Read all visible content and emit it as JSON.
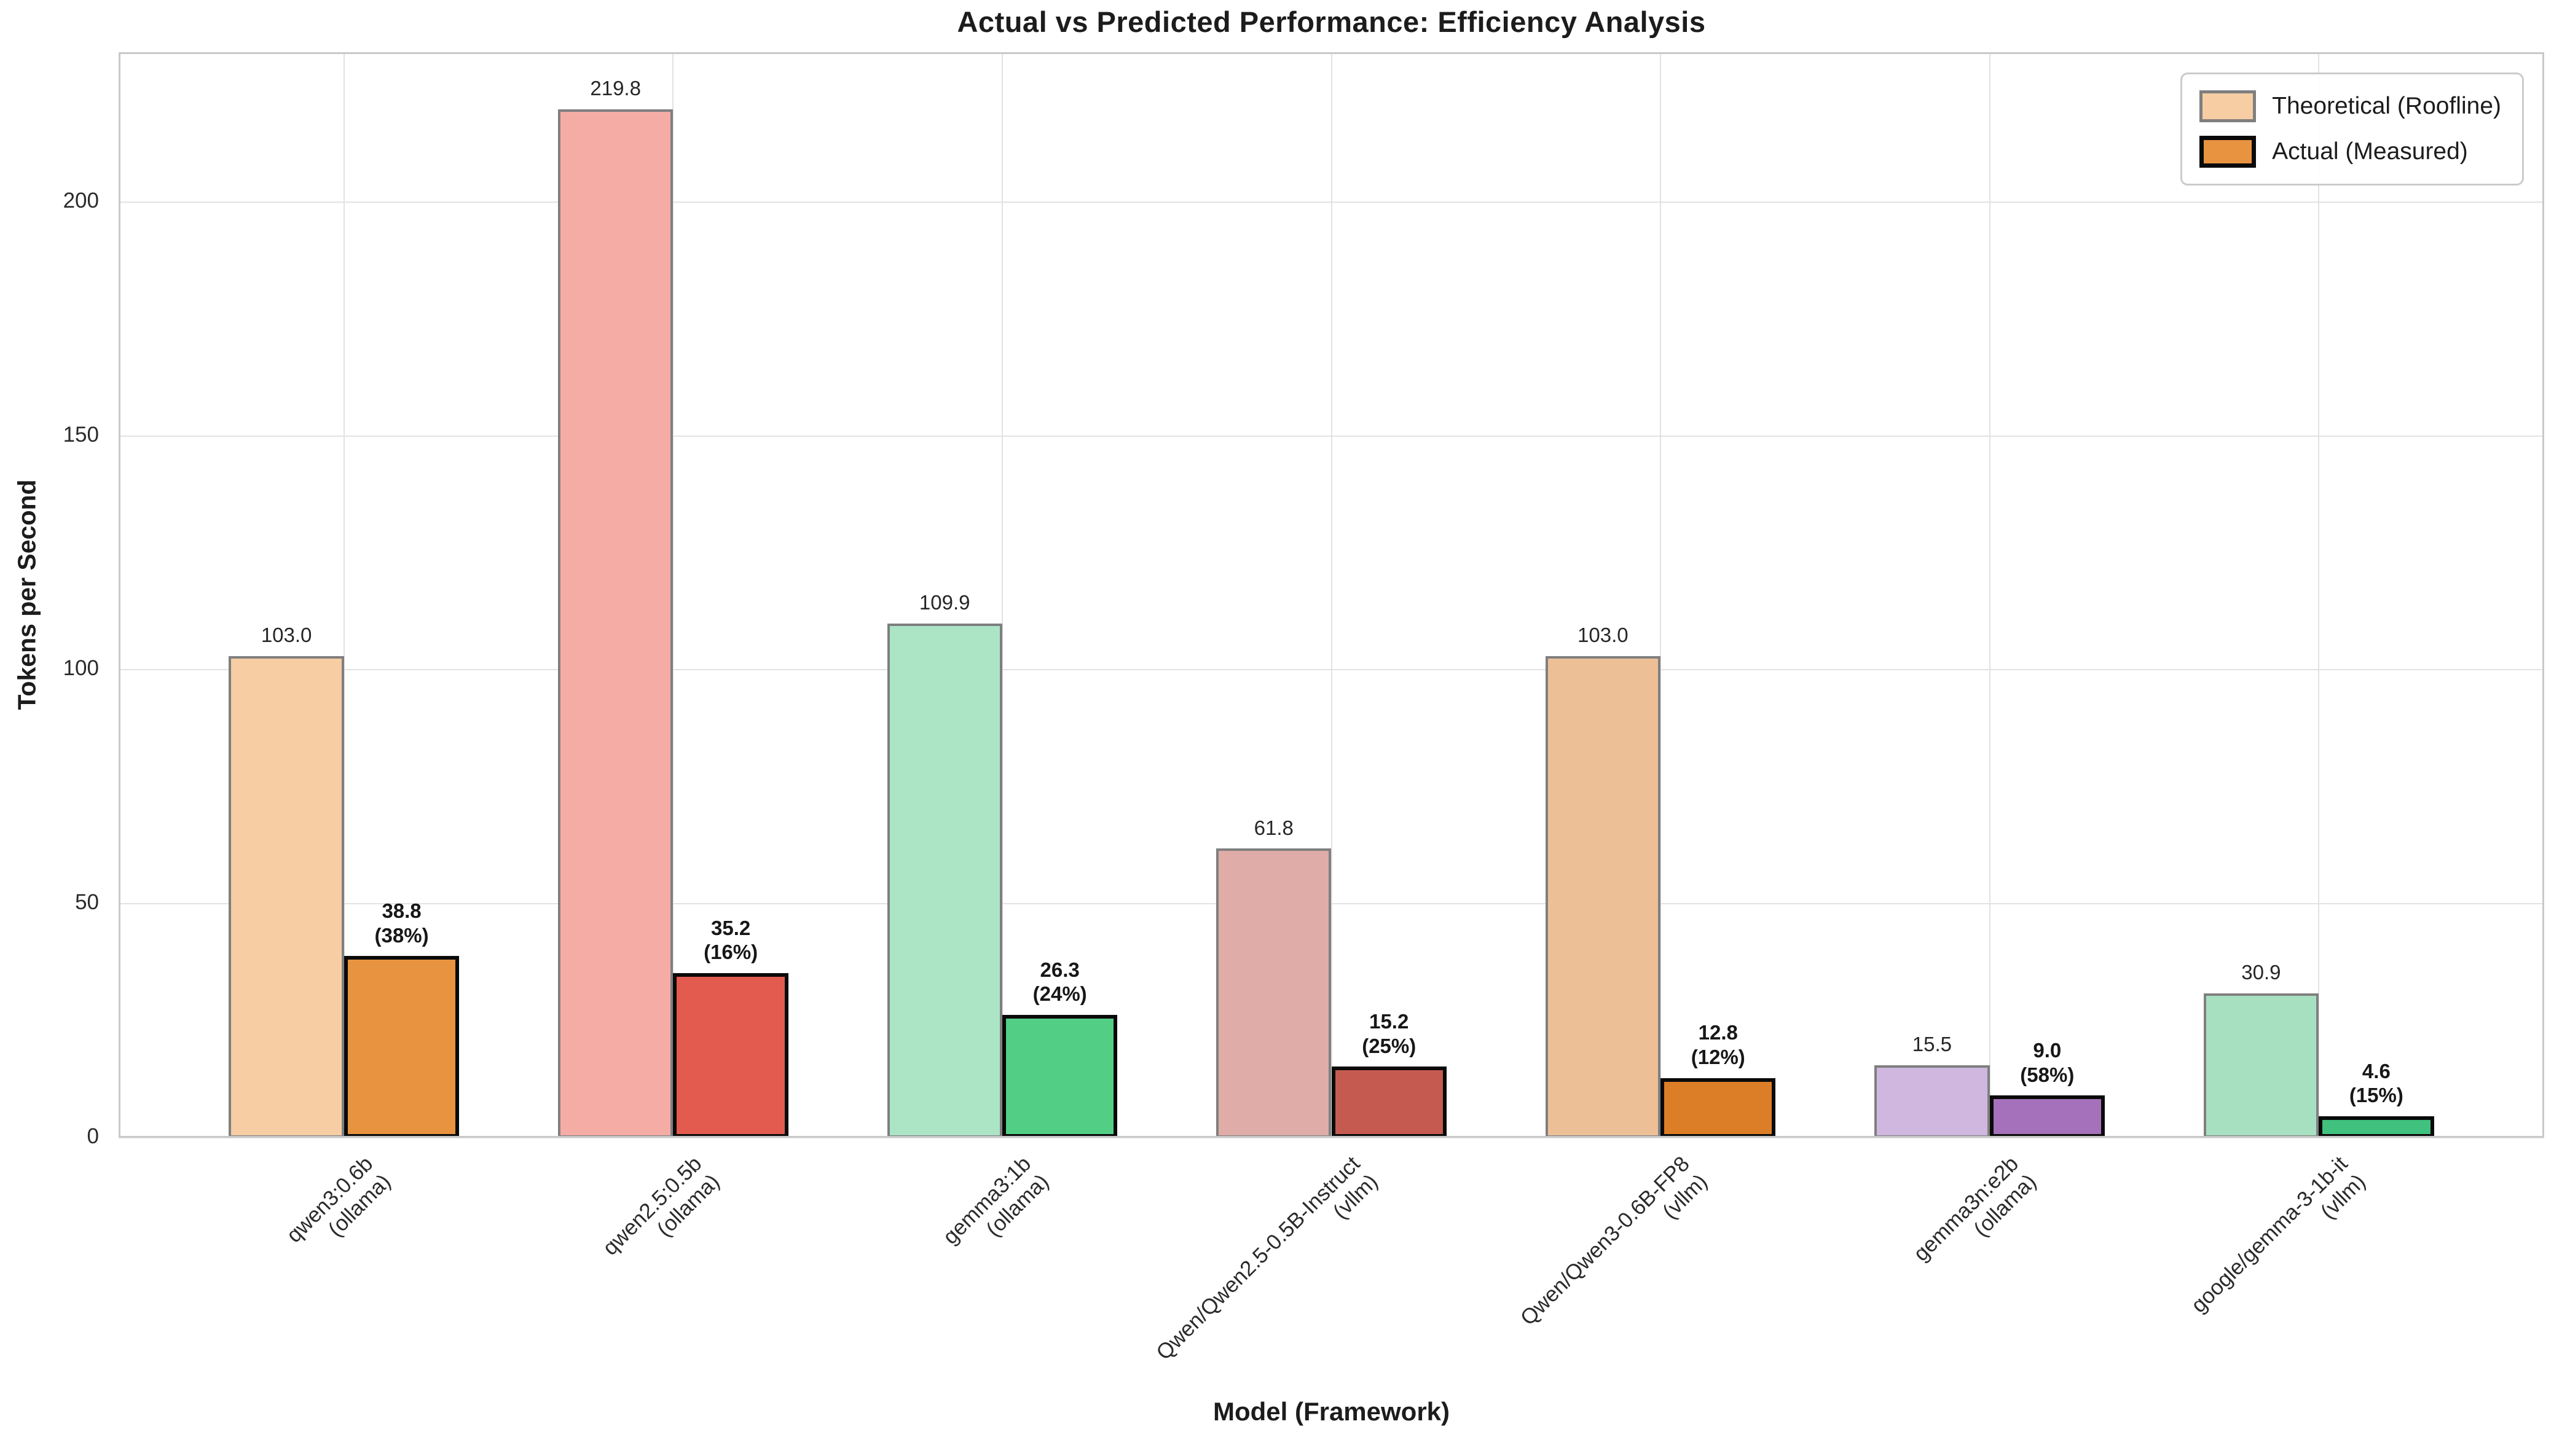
{
  "chart_data": {
    "type": "bar",
    "title": "Actual vs Predicted Performance: Efficiency Analysis",
    "xlabel": "Model (Framework)",
    "ylabel": "Tokens per Second",
    "ylim": [
      0,
      232
    ],
    "yticks": [
      "0",
      "50",
      "100",
      "150",
      "200"
    ],
    "ytick_values": [
      0,
      50,
      100,
      150,
      200
    ],
    "grid": "both",
    "legend": {
      "position": "upper right",
      "entries": [
        {
          "label": "Theoretical (Roofline)",
          "fill": "#F7CDA4",
          "edge": "#7F7F7F"
        },
        {
          "label": "Actual (Measured)",
          "fill": "#E8933F",
          "edge": "#0A0A0A"
        }
      ]
    },
    "categories": [
      {
        "model": "qwen3:0.6b",
        "framework": "(ollama)"
      },
      {
        "model": "qwen2.5:0.5b",
        "framework": "(ollama)"
      },
      {
        "model": "gemma3:1b",
        "framework": "(ollama)"
      },
      {
        "model": "Qwen/Qwen2.5-0.5B-Instruct",
        "framework": "(vllm)"
      },
      {
        "model": "Qwen/Qwen3-0.6B-FP8",
        "framework": "(vllm)"
      },
      {
        "model": "gemma3n:e2b",
        "framework": "(ollama)"
      },
      {
        "model": "google/gemma-3-1b-it",
        "framework": "(vllm)"
      }
    ],
    "series": [
      {
        "name": "Theoretical (Roofline)",
        "values": [
          103.0,
          219.8,
          109.9,
          61.8,
          103.0,
          15.5,
          30.9
        ],
        "value_labels": [
          "103.0",
          "219.8",
          "109.9",
          "61.8",
          "103.0",
          "15.5",
          "30.9"
        ]
      },
      {
        "name": "Actual (Measured)",
        "values": [
          38.8,
          35.2,
          26.3,
          15.2,
          12.8,
          9.0,
          4.6
        ],
        "value_labels": [
          "38.8",
          "35.2",
          "26.3",
          "15.2",
          "12.8",
          "9.0",
          "4.6"
        ],
        "efficiency_labels": [
          "(38%)",
          "(16%)",
          "(24%)",
          "(25%)",
          "(12%)",
          "(58%)",
          "(15%)"
        ]
      }
    ],
    "bar_colors": [
      {
        "theoretical": "#F7CDA4",
        "actual": "#E8933F"
      },
      {
        "theoretical": "#F5ACA5",
        "actual": "#E25B4E"
      },
      {
        "theoretical": "#ACE5C6",
        "actual": "#52CF85"
      },
      {
        "theoretical": "#DFACA7",
        "actual": "#C55B50"
      },
      {
        "theoretical": "#EDBF97",
        "actual": "#DC7E27"
      },
      {
        "theoretical": "#CFB7E0",
        "actual": "#A471BA"
      },
      {
        "theoretical": "#A7E0C0",
        "actual": "#41C17E"
      }
    ],
    "edge_colors": {
      "theoretical": "#7F7F7F",
      "actual": "#0A0A0A"
    },
    "style": {
      "grid_color": "#E2E2E2",
      "spine_color": "#C9C9C9",
      "text_color": "#1C1C1C"
    }
  }
}
